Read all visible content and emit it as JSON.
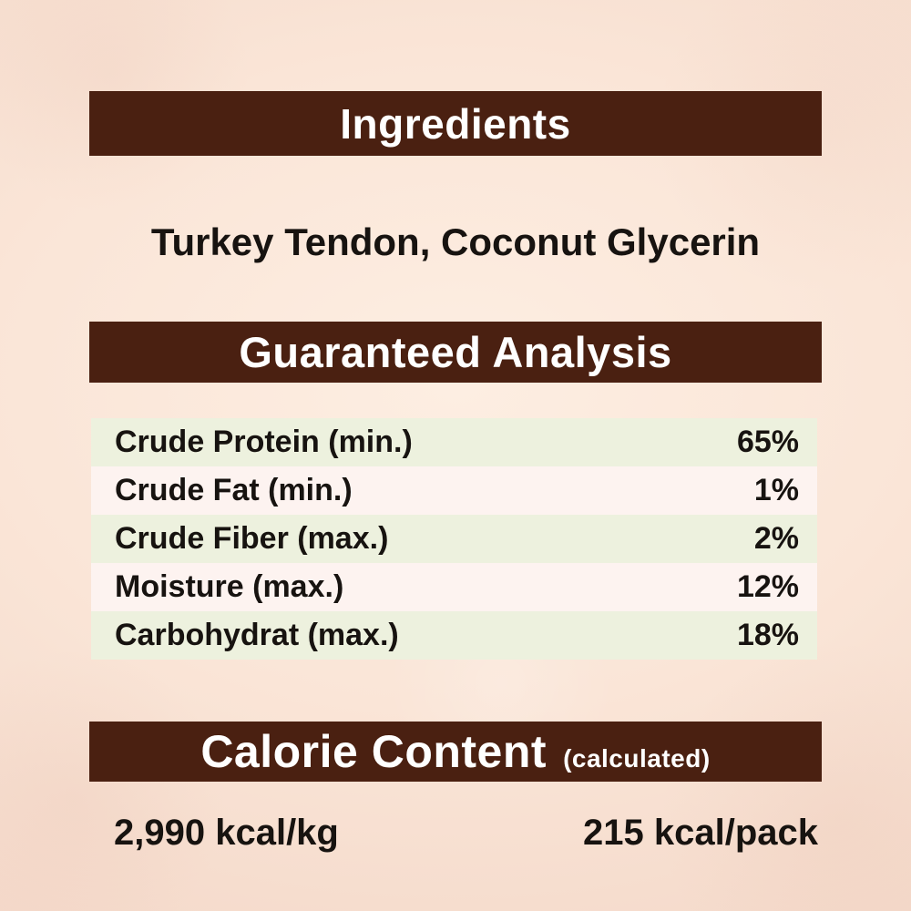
{
  "palette": {
    "background_pink": "#f5dbcc",
    "header_bar_brown": "#4a2011",
    "header_text_white": "#ffffff",
    "body_text_black": "#171310",
    "row_green": "#edf1de",
    "row_pink": "#fdf3f0"
  },
  "sections": {
    "ingredients": {
      "title": "Ingredients",
      "content": "Turkey Tendon, Coconut Glycerin"
    },
    "guaranteed_analysis": {
      "title": "Guaranteed Analysis",
      "rows": [
        {
          "label": "Crude Protein (min.)",
          "value": "65%"
        },
        {
          "label": "Crude Fat (min.)",
          "value": "1%"
        },
        {
          "label": "Crude Fiber (max.)",
          "value": "2%"
        },
        {
          "label": "Moisture (max.)",
          "value": "12%"
        },
        {
          "label": "Carbohydrat (max.)",
          "value": "18%"
        }
      ]
    },
    "calorie_content": {
      "title": "Calorie Content",
      "subtitle": "(calculated)",
      "per_kg": "2,990 kcal/kg",
      "per_pack": "215 kcal/pack"
    }
  }
}
